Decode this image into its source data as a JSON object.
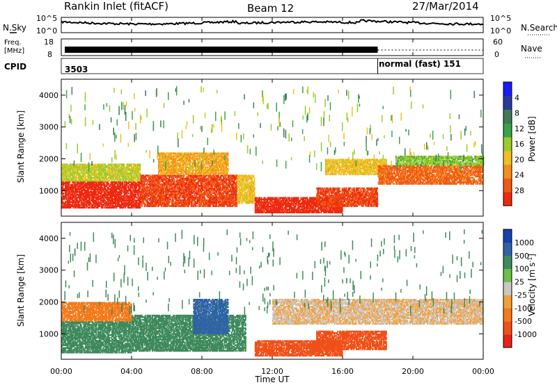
{
  "header": {
    "station": "Rankin Inlet (fitACF)",
    "beam": "Beam 12",
    "date": "27/Mar/2014"
  },
  "top_panels": {
    "nsky_label": "N.Sky",
    "nsearch_label": "N.Search",
    "nsky_ticks": [
      "10^5",
      "10^0"
    ],
    "freq_label_1": "Freq.",
    "freq_label_2": "[MHz]",
    "freq_ticks": [
      "18",
      "8"
    ],
    "nave_label": "Nave",
    "nave_ticks": [
      "60",
      "0"
    ],
    "cpid_label": "CPID",
    "cpid_before": "3503",
    "cpid_after": "normal (fast) 151",
    "cpid_change_time_h": 18.0
  },
  "x_axis": {
    "label": "Time UT",
    "range_h": [
      0,
      24
    ],
    "ticks": [
      "00:00",
      "04:00",
      "08:00",
      "12:00",
      "16:00",
      "20:00",
      "00:00"
    ]
  },
  "panels": [
    {
      "id": "power",
      "ylabel": "Slant Range [km]",
      "yticks": [
        "1000",
        "2000",
        "3000",
        "4000"
      ],
      "colorbar_label": "Power [dB]",
      "colorbar_ticks": [
        "4",
        "8",
        "12",
        "16",
        "20",
        "24",
        "28"
      ],
      "colorbar_colors": [
        "#1a1aff",
        "#2a3a9a",
        "#3f7a5a",
        "#3aa24a",
        "#9bcc2a",
        "#f0c020",
        "#f4901a",
        "#f25a12",
        "#ee2a10"
      ]
    },
    {
      "id": "velocity",
      "ylabel": "Slant Range [km]",
      "yticks": [
        "1000",
        "2000",
        "3000",
        "4000"
      ],
      "colorbar_label": "Velocity [m s",
      "colorbar_label_sup": "-1",
      "colorbar_label_end": "]",
      "colorbar_ticks": [
        "1000",
        "500",
        "100",
        "25",
        "-25",
        "-100",
        "-500",
        "-1000"
      ],
      "colorbar_colors": [
        "#1840b0",
        "#2f63a8",
        "#3f8a5c",
        "#6bc04a",
        "#c8c8c8",
        "#f4a03a",
        "#f47a1a",
        "#f05018",
        "#e8221a"
      ]
    }
  ],
  "chart_data": {
    "type": "heatmap",
    "x_unit": "hours UT",
    "y_unit": "km",
    "ylim": [
      200,
      4500
    ],
    "power_regions": [
      {
        "t0": 0.0,
        "t1": 4.5,
        "r0": 450,
        "r1": 1300,
        "level": 28
      },
      {
        "t0": 0.0,
        "t1": 4.5,
        "r0": 1300,
        "r1": 1850,
        "level": 16
      },
      {
        "t0": 4.5,
        "t1": 10.0,
        "r0": 500,
        "r1": 1500,
        "level": 26
      },
      {
        "t0": 5.5,
        "t1": 9.5,
        "r0": 1500,
        "r1": 2200,
        "level": 20
      },
      {
        "t0": 10.0,
        "t1": 11.0,
        "r0": 600,
        "r1": 1500,
        "level": 18
      },
      {
        "t0": 11.0,
        "t1": 16.0,
        "r0": 300,
        "r1": 800,
        "level": 28
      },
      {
        "t0": 14.5,
        "t1": 18.0,
        "r0": 500,
        "r1": 1100,
        "level": 26
      },
      {
        "t0": 15.0,
        "t1": 18.5,
        "r0": 1500,
        "r1": 2000,
        "level": 18
      },
      {
        "t0": 18.0,
        "t1": 24.0,
        "r0": 1200,
        "r1": 1800,
        "level": 24
      },
      {
        "t0": 19.0,
        "t1": 24.0,
        "r0": 1800,
        "r1": 2100,
        "level": 14
      }
    ],
    "velocity_regions": [
      {
        "t0": 0.0,
        "t1": 4.0,
        "r0": 400,
        "r1": 1400,
        "level": 100
      },
      {
        "t0": 4.0,
        "t1": 10.5,
        "r0": 450,
        "r1": 1600,
        "level": 100
      },
      {
        "t0": 7.5,
        "t1": 9.5,
        "r0": 1000,
        "r1": 2100,
        "level": 500
      },
      {
        "t0": 11.0,
        "t1": 16.0,
        "r0": 300,
        "r1": 800,
        "level": -500
      },
      {
        "t0": 14.5,
        "t1": 18.5,
        "r0": 500,
        "r1": 1100,
        "level": -500
      },
      {
        "t0": 12.0,
        "t1": 24.0,
        "r0": 1300,
        "r1": 2100,
        "level": -25
      },
      {
        "t0": 0.0,
        "t1": 4.0,
        "r0": 1400,
        "r1": 2000,
        "level": -100
      }
    ]
  }
}
